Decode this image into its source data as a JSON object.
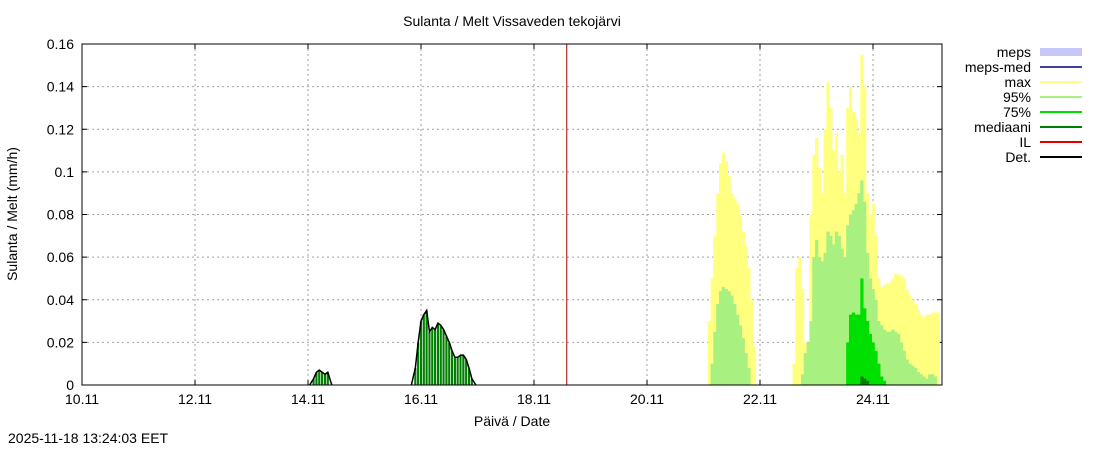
{
  "footer": {
    "timestamp": "2025-11-18 13:24:03 EET"
  },
  "chart_data": {
    "type": "bar",
    "title": "Sulanta / Melt  Vissaveden tekojärvi",
    "xlabel": "Päivä / Date",
    "ylabel": "Sulanta / Melt (mm/h)",
    "xlim_days": [
      0,
      15.2
    ],
    "ylim": [
      0,
      0.16
    ],
    "grid": true,
    "legend_position": "right",
    "x_ticks": [
      {
        "day": 0,
        "label": "10.11"
      },
      {
        "day": 2,
        "label": "12.11"
      },
      {
        "day": 4,
        "label": "14.11"
      },
      {
        "day": 6,
        "label": "16.11"
      },
      {
        "day": 8,
        "label": "18.11"
      },
      {
        "day": 10,
        "label": "20.11"
      },
      {
        "day": 12,
        "label": "22.11"
      },
      {
        "day": 14,
        "label": "24.11"
      }
    ],
    "y_ticks": [
      {
        "value": 0,
        "label": "0"
      },
      {
        "value": 0.02,
        "label": "0.02"
      },
      {
        "value": 0.04,
        "label": "0.04"
      },
      {
        "value": 0.06,
        "label": "0.06"
      },
      {
        "value": 0.08,
        "label": "0.08"
      },
      {
        "value": 0.1,
        "label": "0.1"
      },
      {
        "value": 0.12,
        "label": "0.12"
      },
      {
        "value": 0.14,
        "label": "0.14"
      },
      {
        "value": 0.16,
        "label": "0.16"
      }
    ],
    "legend": [
      {
        "name": "meps",
        "color": "#c8c8f8",
        "style": "band"
      },
      {
        "name": "meps-med",
        "color": "#4040a0",
        "style": "line"
      },
      {
        "name": "max",
        "color": "#ffff80",
        "style": "line"
      },
      {
        "name": "95%",
        "color": "#a8f080",
        "style": "line"
      },
      {
        "name": "75%",
        "color": "#00e000",
        "style": "line"
      },
      {
        "name": "mediaani",
        "color": "#008000",
        "style": "line"
      },
      {
        "name": "IL",
        "color": "#e00000",
        "style": "line"
      },
      {
        "name": "Det.",
        "color": "#000000",
        "style": "line"
      }
    ],
    "now_marker_day": 8.58,
    "observed": [
      {
        "x": 4.1,
        "y": 0.003
      },
      {
        "x": 4.15,
        "y": 0.006
      },
      {
        "x": 4.2,
        "y": 0.007
      },
      {
        "x": 4.25,
        "y": 0.006
      },
      {
        "x": 4.3,
        "y": 0.005
      },
      {
        "x": 4.35,
        "y": 0.006
      },
      {
        "x": 5.9,
        "y": 0.008
      },
      {
        "x": 5.95,
        "y": 0.02
      },
      {
        "x": 6.0,
        "y": 0.03
      },
      {
        "x": 6.05,
        "y": 0.033
      },
      {
        "x": 6.1,
        "y": 0.035
      },
      {
        "x": 6.15,
        "y": 0.025
      },
      {
        "x": 6.2,
        "y": 0.027
      },
      {
        "x": 6.25,
        "y": 0.026
      },
      {
        "x": 6.3,
        "y": 0.029
      },
      {
        "x": 6.35,
        "y": 0.028
      },
      {
        "x": 6.4,
        "y": 0.026
      },
      {
        "x": 6.45,
        "y": 0.023
      },
      {
        "x": 6.5,
        "y": 0.02
      },
      {
        "x": 6.55,
        "y": 0.016
      },
      {
        "x": 6.6,
        "y": 0.013
      },
      {
        "x": 6.65,
        "y": 0.013
      },
      {
        "x": 6.7,
        "y": 0.014
      },
      {
        "x": 6.75,
        "y": 0.014
      },
      {
        "x": 6.8,
        "y": 0.012
      },
      {
        "x": 6.85,
        "y": 0.008
      },
      {
        "x": 6.9,
        "y": 0.003
      }
    ],
    "forecast_max": [
      {
        "x": 11.1,
        "y": 0.03
      },
      {
        "x": 11.15,
        "y": 0.05
      },
      {
        "x": 11.2,
        "y": 0.07
      },
      {
        "x": 11.25,
        "y": 0.09
      },
      {
        "x": 11.3,
        "y": 0.104
      },
      {
        "x": 11.35,
        "y": 0.109
      },
      {
        "x": 11.4,
        "y": 0.105
      },
      {
        "x": 11.45,
        "y": 0.098
      },
      {
        "x": 11.5,
        "y": 0.09
      },
      {
        "x": 11.55,
        "y": 0.088
      },
      {
        "x": 11.6,
        "y": 0.085
      },
      {
        "x": 11.65,
        "y": 0.08
      },
      {
        "x": 11.7,
        "y": 0.072
      },
      {
        "x": 11.75,
        "y": 0.065
      },
      {
        "x": 11.8,
        "y": 0.055
      },
      {
        "x": 11.85,
        "y": 0.04
      },
      {
        "x": 11.9,
        "y": 0.018
      },
      {
        "x": 12.6,
        "y": 0.01
      },
      {
        "x": 12.65,
        "y": 0.055
      },
      {
        "x": 12.7,
        "y": 0.06
      },
      {
        "x": 12.75,
        "y": 0.045
      },
      {
        "x": 12.8,
        "y": 0.02
      },
      {
        "x": 12.85,
        "y": 0.01
      },
      {
        "x": 12.9,
        "y": 0.08
      },
      {
        "x": 12.95,
        "y": 0.108
      },
      {
        "x": 13.0,
        "y": 0.116
      },
      {
        "x": 13.05,
        "y": 0.102
      },
      {
        "x": 13.1,
        "y": 0.09
      },
      {
        "x": 13.15,
        "y": 0.12
      },
      {
        "x": 13.2,
        "y": 0.142
      },
      {
        "x": 13.25,
        "y": 0.13
      },
      {
        "x": 13.3,
        "y": 0.11
      },
      {
        "x": 13.35,
        "y": 0.118
      },
      {
        "x": 13.4,
        "y": 0.1
      },
      {
        "x": 13.45,
        "y": 0.108
      },
      {
        "x": 13.5,
        "y": 0.09
      },
      {
        "x": 13.55,
        "y": 0.13
      },
      {
        "x": 13.6,
        "y": 0.14
      },
      {
        "x": 13.65,
        "y": 0.128
      },
      {
        "x": 13.7,
        "y": 0.125
      },
      {
        "x": 13.75,
        "y": 0.118
      },
      {
        "x": 13.8,
        "y": 0.155
      },
      {
        "x": 13.85,
        "y": 0.14
      },
      {
        "x": 13.9,
        "y": 0.09
      },
      {
        "x": 13.95,
        "y": 0.08
      },
      {
        "x": 14.0,
        "y": 0.085
      },
      {
        "x": 14.05,
        "y": 0.07
      },
      {
        "x": 14.1,
        "y": 0.05
      },
      {
        "x": 14.15,
        "y": 0.046
      },
      {
        "x": 14.2,
        "y": 0.047
      },
      {
        "x": 14.25,
        "y": 0.048
      },
      {
        "x": 14.3,
        "y": 0.048
      },
      {
        "x": 14.35,
        "y": 0.05
      },
      {
        "x": 14.4,
        "y": 0.052
      },
      {
        "x": 14.45,
        "y": 0.052
      },
      {
        "x": 14.5,
        "y": 0.051
      },
      {
        "x": 14.55,
        "y": 0.05
      },
      {
        "x": 14.6,
        "y": 0.045
      },
      {
        "x": 14.65,
        "y": 0.042
      },
      {
        "x": 14.7,
        "y": 0.04
      },
      {
        "x": 14.75,
        "y": 0.038
      },
      {
        "x": 14.8,
        "y": 0.035
      },
      {
        "x": 14.85,
        "y": 0.033
      },
      {
        "x": 14.9,
        "y": 0.032
      },
      {
        "x": 14.95,
        "y": 0.033
      },
      {
        "x": 15.0,
        "y": 0.033
      },
      {
        "x": 15.05,
        "y": 0.034
      },
      {
        "x": 15.1,
        "y": 0.034
      },
      {
        "x": 15.15,
        "y": 0.034
      }
    ],
    "forecast_95": [
      {
        "x": 11.15,
        "y": 0.01
      },
      {
        "x": 11.2,
        "y": 0.025
      },
      {
        "x": 11.25,
        "y": 0.038
      },
      {
        "x": 11.3,
        "y": 0.044
      },
      {
        "x": 11.35,
        "y": 0.046
      },
      {
        "x": 11.4,
        "y": 0.045
      },
      {
        "x": 11.45,
        "y": 0.044
      },
      {
        "x": 11.5,
        "y": 0.042
      },
      {
        "x": 11.55,
        "y": 0.038
      },
      {
        "x": 11.6,
        "y": 0.033
      },
      {
        "x": 11.65,
        "y": 0.028
      },
      {
        "x": 11.7,
        "y": 0.022
      },
      {
        "x": 11.75,
        "y": 0.015
      },
      {
        "x": 11.8,
        "y": 0.008
      },
      {
        "x": 12.75,
        "y": 0.005
      },
      {
        "x": 12.8,
        "y": 0.015
      },
      {
        "x": 12.85,
        "y": 0.02
      },
      {
        "x": 12.9,
        "y": 0.03
      },
      {
        "x": 12.95,
        "y": 0.06
      },
      {
        "x": 13.0,
        "y": 0.068
      },
      {
        "x": 13.05,
        "y": 0.06
      },
      {
        "x": 13.1,
        "y": 0.058
      },
      {
        "x": 13.15,
        "y": 0.062
      },
      {
        "x": 13.2,
        "y": 0.072
      },
      {
        "x": 13.25,
        "y": 0.07
      },
      {
        "x": 13.3,
        "y": 0.066
      },
      {
        "x": 13.35,
        "y": 0.072
      },
      {
        "x": 13.4,
        "y": 0.07
      },
      {
        "x": 13.45,
        "y": 0.064
      },
      {
        "x": 13.5,
        "y": 0.06
      },
      {
        "x": 13.55,
        "y": 0.075
      },
      {
        "x": 13.6,
        "y": 0.08
      },
      {
        "x": 13.65,
        "y": 0.082
      },
      {
        "x": 13.7,
        "y": 0.085
      },
      {
        "x": 13.75,
        "y": 0.09
      },
      {
        "x": 13.8,
        "y": 0.096
      },
      {
        "x": 13.85,
        "y": 0.086
      },
      {
        "x": 13.9,
        "y": 0.062
      },
      {
        "x": 13.95,
        "y": 0.05
      },
      {
        "x": 14.0,
        "y": 0.045
      },
      {
        "x": 14.05,
        "y": 0.04
      },
      {
        "x": 14.1,
        "y": 0.03
      },
      {
        "x": 14.15,
        "y": 0.028
      },
      {
        "x": 14.2,
        "y": 0.026
      },
      {
        "x": 14.25,
        "y": 0.025
      },
      {
        "x": 14.3,
        "y": 0.025
      },
      {
        "x": 14.35,
        "y": 0.026
      },
      {
        "x": 14.4,
        "y": 0.025
      },
      {
        "x": 14.45,
        "y": 0.024
      },
      {
        "x": 14.5,
        "y": 0.02
      },
      {
        "x": 14.55,
        "y": 0.016
      },
      {
        "x": 14.6,
        "y": 0.012
      },
      {
        "x": 14.65,
        "y": 0.01
      },
      {
        "x": 14.7,
        "y": 0.009
      },
      {
        "x": 14.75,
        "y": 0.008
      },
      {
        "x": 14.8,
        "y": 0.006
      },
      {
        "x": 14.85,
        "y": 0.005
      },
      {
        "x": 14.9,
        "y": 0.004
      },
      {
        "x": 14.95,
        "y": 0.003
      },
      {
        "x": 15.0,
        "y": 0.005
      },
      {
        "x": 15.05,
        "y": 0.005
      },
      {
        "x": 15.1,
        "y": 0.004
      }
    ],
    "forecast_75": [
      {
        "x": 13.55,
        "y": 0.02
      },
      {
        "x": 13.6,
        "y": 0.033
      },
      {
        "x": 13.65,
        "y": 0.034
      },
      {
        "x": 13.7,
        "y": 0.033
      },
      {
        "x": 13.75,
        "y": 0.033
      },
      {
        "x": 13.8,
        "y": 0.05
      },
      {
        "x": 13.85,
        "y": 0.036
      },
      {
        "x": 13.9,
        "y": 0.03
      },
      {
        "x": 13.95,
        "y": 0.024
      },
      {
        "x": 14.0,
        "y": 0.02
      },
      {
        "x": 14.05,
        "y": 0.016
      },
      {
        "x": 14.1,
        "y": 0.01
      },
      {
        "x": 14.15,
        "y": 0.004
      },
      {
        "x": 14.2,
        "y": 0.002
      }
    ],
    "forecast_median": [
      {
        "x": 13.8,
        "y": 0.004
      },
      {
        "x": 13.85,
        "y": 0.003
      },
      {
        "x": 13.9,
        "y": 0.002
      }
    ]
  }
}
